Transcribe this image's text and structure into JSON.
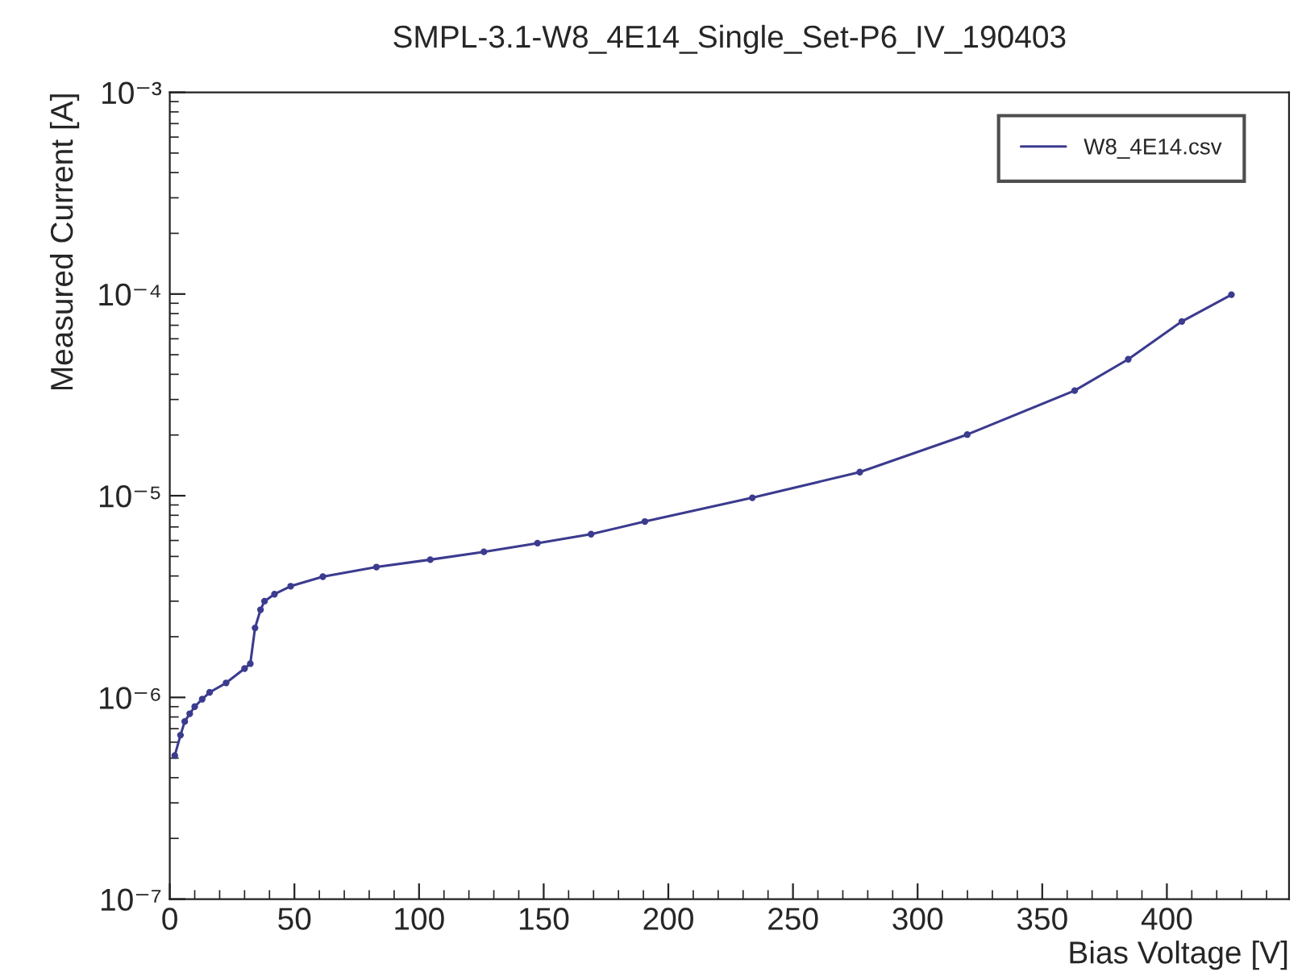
{
  "chart_data": {
    "type": "line",
    "title": "SMPL-3.1-W8_4E14_Single_Set-P6_IV_190403",
    "xlabel": "Bias Voltage [V]",
    "ylabel": "Measured Current [A]",
    "log": "y",
    "grid": false,
    "legend": "top right",
    "marker": "circle",
    "line_style": "solid",
    "xlim": [
      0,
      449
    ],
    "xticks": [
      0,
      50,
      100,
      150,
      200,
      250,
      300,
      350,
      400
    ],
    "ylim": [
      1e-07,
      0.001
    ],
    "yticks": [
      {
        "value": 1e-07,
        "label": "10⁻⁷"
      },
      {
        "value": 1e-06,
        "label": "10⁻⁶"
      },
      {
        "value": 1e-05,
        "label": "10⁻⁵"
      },
      {
        "value": 0.0001,
        "label": "10⁻⁴"
      },
      {
        "value": 0.001,
        "label": "10⁻³"
      }
    ],
    "series": [
      {
        "name": "W8_4E14.csv",
        "color": "#3b3b8f",
        "x": [
          2,
          4.3,
          6,
          8,
          10,
          13,
          16,
          22.6,
          30,
          32.3,
          34.2,
          36.4,
          38,
          42,
          48.5,
          61.4,
          82.9,
          104.5,
          126,
          147.5,
          169,
          190.6,
          233.7,
          276.8,
          319.9,
          363,
          384.5,
          406,
          425.9
        ],
        "values": [
          5.15e-07,
          6.5e-07,
          7.6e-07,
          8.3e-07,
          9e-07,
          9.8e-07,
          1.06e-06,
          1.18e-06,
          1.39e-06,
          1.47e-06,
          2.21e-06,
          2.72e-06,
          3e-06,
          3.25e-06,
          3.56e-06,
          3.97e-06,
          4.43e-06,
          4.82e-06,
          5.27e-06,
          5.82e-06,
          6.45e-06,
          7.45e-06,
          9.77e-06,
          1.31e-05,
          2.01e-05,
          3.32e-05,
          4.75e-05,
          7.31e-05,
          9.93e-05
        ]
      }
    ]
  }
}
